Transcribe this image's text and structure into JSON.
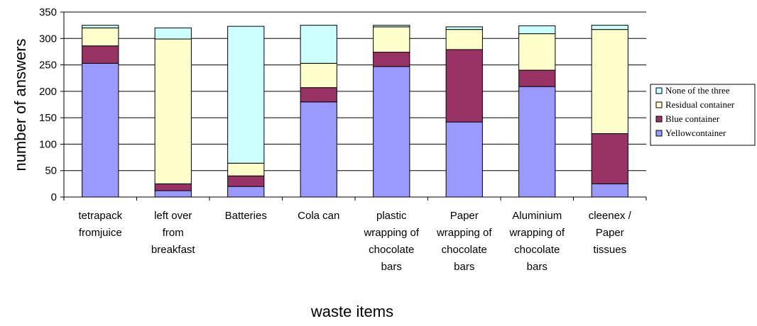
{
  "chart_data": {
    "type": "bar",
    "stacked": true,
    "title": "",
    "xlabel": "waste items",
    "ylabel": "number of answers",
    "ylim": [
      0,
      350
    ],
    "yticks": [
      0,
      50,
      100,
      150,
      200,
      250,
      300,
      350
    ],
    "grid": true,
    "legend_position": "right",
    "categories": [
      "tetrapack\nfromjuice",
      "left over\nfrom\nbreakfast",
      "Batteries",
      "Cola can",
      "plastic\nwrapping of\nchocolate\nbars",
      "Paper\nwrapping of\nchocolate\nbars",
      "Aluminium\nwrapping of\nchocolate\nbars",
      "cleenex /\nPaper\ntissues"
    ],
    "series": [
      {
        "name": "Yellowcontainer",
        "color": "#9999FF",
        "values": [
          253,
          12,
          20,
          180,
          247,
          142,
          209,
          25
        ]
      },
      {
        "name": "Blue container",
        "color": "#993366",
        "values": [
          33,
          13,
          20,
          27,
          27,
          137,
          31,
          95
        ]
      },
      {
        "name": "Residual container",
        "color": "#FFFFCC",
        "values": [
          34,
          274,
          24,
          46,
          48,
          38,
          69,
          197
        ]
      },
      {
        "name": "None of the three",
        "color": "#CCFFFF",
        "values": [
          5,
          21,
          259,
          72,
          3,
          5,
          15,
          8
        ]
      }
    ],
    "legend_order": [
      "None of the three",
      "Residual container",
      "Blue container",
      "Yellowcontainer"
    ]
  }
}
